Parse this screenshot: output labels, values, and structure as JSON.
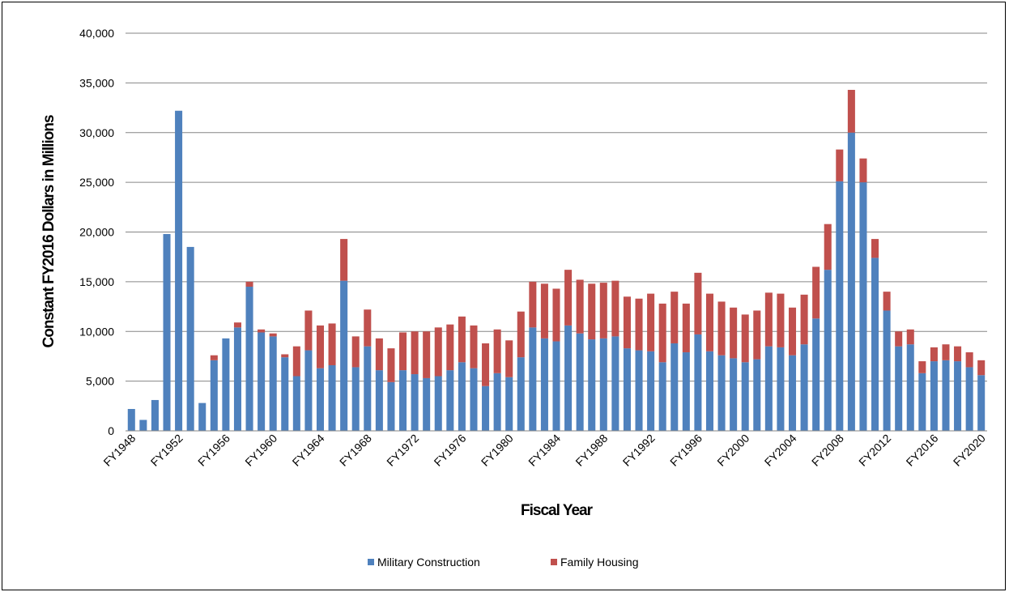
{
  "chart_data": {
    "type": "bar",
    "stacked": true,
    "title": "",
    "xlabel": "Fiscal Year",
    "ylabel": "Constant FY2016 Dollars in Millions",
    "ylim": [
      0,
      40000
    ],
    "yticks": [
      "0",
      "5,000",
      "10,000",
      "15,000",
      "20,000",
      "25,000",
      "30,000",
      "35,000",
      "40,000"
    ],
    "yticks_values": [
      0,
      5000,
      10000,
      15000,
      20000,
      25000,
      30000,
      35000,
      40000
    ],
    "grid": true,
    "legend_position": "bottom",
    "categories": [
      "FY1948",
      "FY1949",
      "FY1950",
      "FY1951",
      "FY1952",
      "FY1953",
      "FY1954",
      "FY1955",
      "FY1956",
      "FY1957",
      "FY1958",
      "FY1959",
      "FY1960",
      "FY1961",
      "FY1962",
      "FY1963",
      "FY1964",
      "FY1965",
      "FY1966",
      "FY1967",
      "FY1968",
      "FY1969",
      "FY1970",
      "FY1971",
      "FY1972",
      "FY1973",
      "FY1974",
      "FY1975",
      "FY1976",
      "FY1977",
      "FY1978",
      "FY1979",
      "FY1980",
      "FY1981",
      "FY1982",
      "FY1983",
      "FY1984",
      "FY1985",
      "FY1986",
      "FY1987",
      "FY1988",
      "FY1989",
      "FY1990",
      "FY1991",
      "FY1992",
      "FY1993",
      "FY1994",
      "FY1995",
      "FY1996",
      "FY1997",
      "FY1998",
      "FY1999",
      "FY2000",
      "FY2001",
      "FY2002",
      "FY2003",
      "FY2004",
      "FY2005",
      "FY2006",
      "FY2007",
      "FY2008",
      "FY2009",
      "FY2010",
      "FY2011",
      "FY2012",
      "FY2013",
      "FY2014",
      "FY2015",
      "FY2016",
      "FY2017",
      "FY2018",
      "FY2019",
      "FY2020"
    ],
    "xtick_labels": [
      "FY1948",
      "FY1952",
      "FY1956",
      "FY1960",
      "FY1964",
      "FY1968",
      "FY1972",
      "FY1976",
      "FY1980",
      "FY1984",
      "FY1988",
      "FY1992",
      "FY1996",
      "FY2000",
      "FY2004",
      "FY2008",
      "FY2012",
      "FY2016",
      "FY2020"
    ],
    "series": [
      {
        "name": "Military Construction",
        "color": "#4f81bd",
        "values": [
          2200,
          1100,
          3100,
          19800,
          32200,
          18500,
          2800,
          7100,
          9300,
          10400,
          14500,
          9900,
          9500,
          7400,
          5500,
          8100,
          6300,
          6600,
          15100,
          6400,
          8500,
          6100,
          4900,
          6100,
          5700,
          5300,
          5500,
          6100,
          6900,
          6300,
          4500,
          5800,
          5400,
          7400,
          10400,
          9300,
          9000,
          10600,
          9800,
          9200,
          9300,
          9500,
          8300,
          8100,
          8000,
          6900,
          8800,
          7900,
          9700,
          8000,
          7600,
          7300,
          6900,
          7200,
          8500,
          8400,
          7600,
          8700,
          11300,
          16200,
          25100,
          30000,
          25000,
          17400,
          12100,
          8500,
          8700,
          5800,
          7000,
          7100,
          7000,
          6400,
          5600
        ]
      },
      {
        "name": "Family Housing",
        "color": "#c0504d",
        "values": [
          0,
          0,
          0,
          0,
          0,
          0,
          0,
          500,
          0,
          500,
          500,
          300,
          300,
          300,
          3000,
          4000,
          4300,
          4200,
          4200,
          3100,
          3700,
          3200,
          3400,
          3800,
          4300,
          4700,
          4900,
          4600,
          4600,
          4300,
          4300,
          4400,
          3700,
          4600,
          4600,
          5500,
          5300,
          5600,
          5400,
          5600,
          5600,
          5600,
          5200,
          5200,
          5800,
          5900,
          5200,
          4900,
          6200,
          5800,
          5400,
          5100,
          4800,
          4900,
          5400,
          5400,
          4800,
          5000,
          5200,
          4600,
          3200,
          4300,
          2400,
          1900,
          1900,
          1500,
          1500,
          1200,
          1400,
          1600,
          1500,
          1500,
          1500
        ]
      }
    ]
  }
}
